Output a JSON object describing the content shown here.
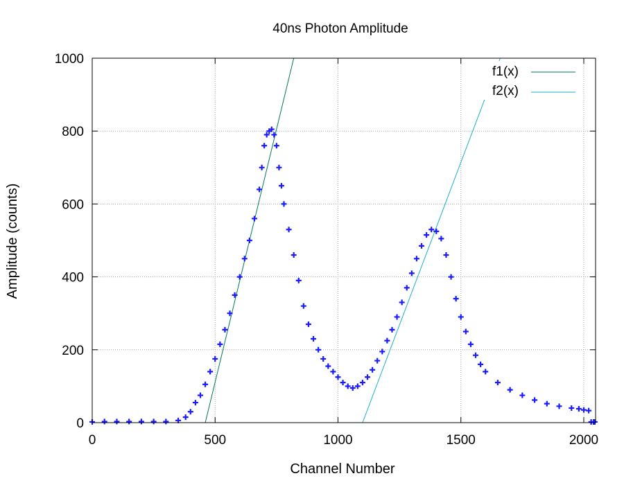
{
  "chart_data": {
    "type": "scatter",
    "title": "40ns Photon Amplitude",
    "xlabel": "Channel Number",
    "ylabel": "Amplitude (counts)",
    "xlim": [
      0,
      2048
    ],
    "ylim": [
      0,
      1000
    ],
    "xticks": [
      0,
      500,
      1000,
      1500,
      2000
    ],
    "yticks": [
      0,
      200,
      400,
      600,
      800,
      1000
    ],
    "grid": true,
    "legend_position": "top-right",
    "data_series": {
      "marker": "plus",
      "color": "#1a1aff",
      "points": [
        [
          0,
          2
        ],
        [
          50,
          3
        ],
        [
          100,
          3
        ],
        [
          150,
          3
        ],
        [
          200,
          3
        ],
        [
          250,
          3
        ],
        [
          300,
          3
        ],
        [
          350,
          6
        ],
        [
          380,
          15
        ],
        [
          400,
          30
        ],
        [
          420,
          55
        ],
        [
          440,
          75
        ],
        [
          460,
          105
        ],
        [
          480,
          140
        ],
        [
          500,
          175
        ],
        [
          520,
          215
        ],
        [
          540,
          255
        ],
        [
          560,
          300
        ],
        [
          580,
          350
        ],
        [
          600,
          400
        ],
        [
          620,
          450
        ],
        [
          640,
          500
        ],
        [
          660,
          560
        ],
        [
          680,
          640
        ],
        [
          690,
          700
        ],
        [
          700,
          760
        ],
        [
          710,
          790
        ],
        [
          720,
          800
        ],
        [
          730,
          805
        ],
        [
          740,
          790
        ],
        [
          750,
          760
        ],
        [
          760,
          700
        ],
        [
          770,
          650
        ],
        [
          780,
          600
        ],
        [
          800,
          530
        ],
        [
          820,
          460
        ],
        [
          840,
          390
        ],
        [
          860,
          320
        ],
        [
          880,
          270
        ],
        [
          900,
          230
        ],
        [
          920,
          200
        ],
        [
          940,
          175
        ],
        [
          960,
          155
        ],
        [
          980,
          140
        ],
        [
          1000,
          125
        ],
        [
          1020,
          110
        ],
        [
          1040,
          100
        ],
        [
          1060,
          95
        ],
        [
          1080,
          100
        ],
        [
          1100,
          110
        ],
        [
          1120,
          125
        ],
        [
          1140,
          145
        ],
        [
          1160,
          170
        ],
        [
          1180,
          195
        ],
        [
          1200,
          225
        ],
        [
          1220,
          255
        ],
        [
          1240,
          290
        ],
        [
          1260,
          330
        ],
        [
          1280,
          370
        ],
        [
          1300,
          410
        ],
        [
          1320,
          450
        ],
        [
          1340,
          485
        ],
        [
          1360,
          515
        ],
        [
          1380,
          530
        ],
        [
          1400,
          525
        ],
        [
          1420,
          505
        ],
        [
          1440,
          460
        ],
        [
          1460,
          400
        ],
        [
          1480,
          340
        ],
        [
          1500,
          290
        ],
        [
          1520,
          250
        ],
        [
          1540,
          215
        ],
        [
          1560,
          185
        ],
        [
          1580,
          160
        ],
        [
          1600,
          140
        ],
        [
          1650,
          110
        ],
        [
          1700,
          90
        ],
        [
          1750,
          75
        ],
        [
          1800,
          62
        ],
        [
          1850,
          52
        ],
        [
          1900,
          45
        ],
        [
          1950,
          40
        ],
        [
          1980,
          38
        ],
        [
          2000,
          35
        ],
        [
          2020,
          33
        ],
        [
          2030,
          2
        ],
        [
          2040,
          2
        ],
        [
          2045,
          2
        ]
      ]
    },
    "series": [
      {
        "name": "f1(x)",
        "color": "#00785a",
        "x": [
          460,
          820
        ],
        "y": [
          0,
          1000
        ]
      },
      {
        "name": "f2(x)",
        "color": "#1ab0c8",
        "x": [
          1100,
          1660
        ],
        "y": [
          0,
          1000
        ]
      }
    ]
  }
}
